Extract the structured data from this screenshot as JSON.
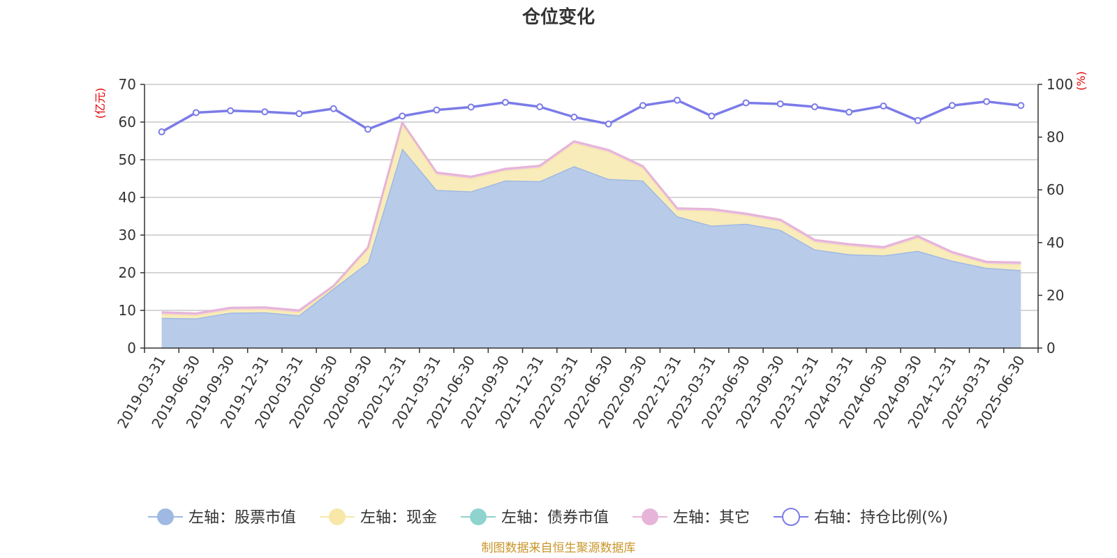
{
  "chart_data": {
    "type": "area",
    "title": "仓位变化",
    "source": "制图数据来自恒生聚源数据库",
    "left_axis": {
      "unit": "(亿元)",
      "ylim": [
        0,
        70
      ],
      "ticks": [
        0,
        10,
        20,
        30,
        40,
        50,
        60,
        70
      ]
    },
    "right_axis": {
      "unit": "(%)",
      "ylim": [
        0,
        100
      ],
      "ticks": [
        0,
        20,
        40,
        60,
        80,
        100
      ]
    },
    "grid": true,
    "legend_position": "bottom",
    "categories": [
      "2019-03-31",
      "2019-06-30",
      "2019-09-30",
      "2019-12-31",
      "2020-03-31",
      "2020-06-30",
      "2020-09-30",
      "2020-12-31",
      "2021-03-31",
      "2021-06-30",
      "2021-09-30",
      "2021-12-31",
      "2022-03-31",
      "2022-06-30",
      "2022-09-30",
      "2022-12-31",
      "2023-03-31",
      "2023-06-30",
      "2023-09-30",
      "2023-12-31",
      "2024-03-31",
      "2024-06-30",
      "2024-09-30",
      "2024-12-31",
      "2025-03-31",
      "2025-06-30"
    ],
    "series": [
      {
        "name": "左轴：股票市值",
        "axis": "left",
        "type": "area",
        "color": "#9fb9e2",
        "fill": "#b8ccea",
        "values": [
          8.0,
          7.9,
          9.4,
          9.5,
          8.7,
          15.8,
          22.7,
          53.0,
          42.0,
          41.6,
          44.5,
          44.3,
          48.3,
          44.9,
          44.5,
          35.0,
          32.5,
          33.0,
          31.4,
          26.2,
          24.9,
          24.6,
          25.8,
          23.2,
          21.3,
          20.7
        ]
      },
      {
        "name": "左轴：现金",
        "axis": "left",
        "type": "area",
        "color": "#f7e8a8",
        "fill": "#f9ecbb",
        "values": [
          1.0,
          0.8,
          0.8,
          0.8,
          0.8,
          0.4,
          3.5,
          6.4,
          4.1,
          3.4,
          2.6,
          3.6,
          6.1,
          7.2,
          3.3,
          1.6,
          3.9,
          2.2,
          2.2,
          2.0,
          2.2,
          1.7,
          3.4,
          1.8,
          1.1,
          1.5
        ]
      },
      {
        "name": "左轴：债券市值",
        "axis": "left",
        "type": "area",
        "color": "#8fd3cf",
        "fill": "#8fd3cf",
        "values": [
          0,
          0,
          0,
          0,
          0,
          0,
          0,
          0,
          0,
          0,
          0,
          0,
          0,
          0,
          0,
          0,
          0,
          0,
          0,
          0,
          0,
          0,
          0,
          0,
          0,
          0
        ]
      },
      {
        "name": "左轴：其它",
        "axis": "left",
        "type": "area",
        "color": "#e6b4d8",
        "fill": "#efcce6",
        "values": [
          0.5,
          0.5,
          0.5,
          0.5,
          0.5,
          0.3,
          0.5,
          0.5,
          0.5,
          0.5,
          0.5,
          0.5,
          0.5,
          0.5,
          0.5,
          0.5,
          0.5,
          0.5,
          0.5,
          0.5,
          0.5,
          0.5,
          0.5,
          0.5,
          0.5,
          0.5
        ]
      },
      {
        "name": "右轴：持仓比例(%)",
        "axis": "right",
        "type": "line",
        "color": "#7b7be8",
        "values": [
          82.0,
          89.3,
          90.0,
          89.6,
          88.9,
          90.8,
          83.0,
          88.0,
          90.3,
          91.4,
          93.2,
          91.5,
          87.6,
          85.0,
          92.0,
          94.0,
          88.0,
          93.0,
          92.6,
          91.5,
          89.5,
          91.8,
          86.3,
          92.0,
          93.5,
          92.0
        ]
      }
    ]
  }
}
